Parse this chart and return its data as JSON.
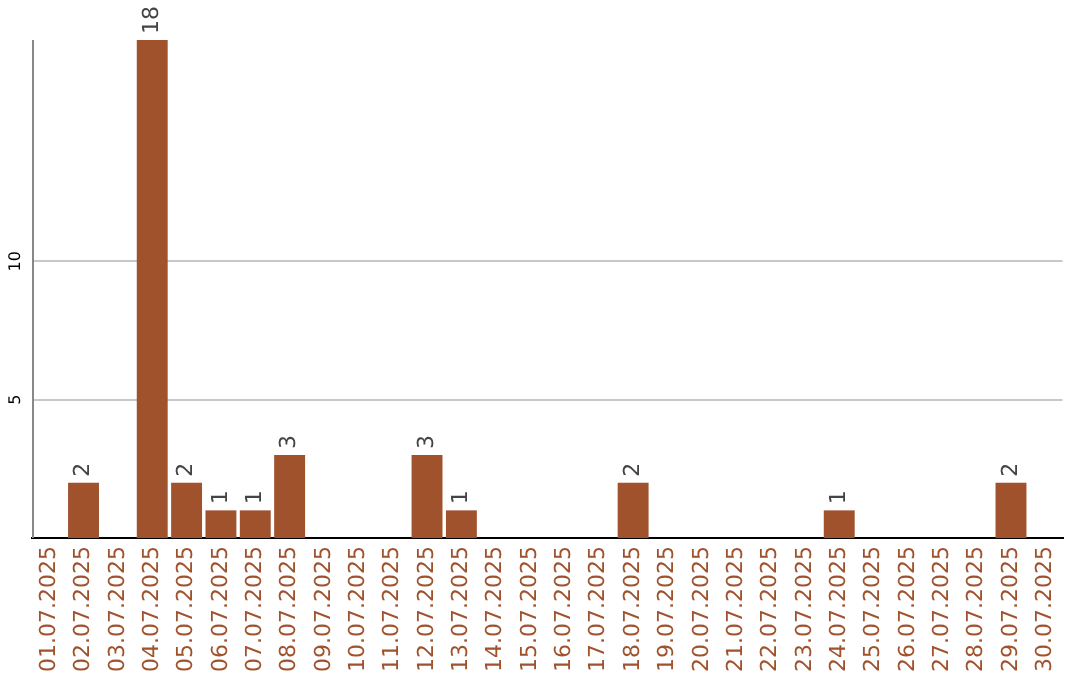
{
  "chart_data": {
    "type": "bar",
    "categories": [
      "01.07.2025",
      "02.07.2025",
      "03.07.2025",
      "04.07.2025",
      "05.07.2025",
      "06.07.2025",
      "07.07.2025",
      "08.07.2025",
      "09.07.2025",
      "10.07.2025",
      "11.07.2025",
      "12.07.2025",
      "13.07.2025",
      "14.07.2025",
      "15.07.2025",
      "16.07.2025",
      "17.07.2025",
      "18.07.2025",
      "19.07.2025",
      "20.07.2025",
      "21.07.2025",
      "22.07.2025",
      "23.07.2025",
      "24.07.2025",
      "25.07.2025",
      "26.07.2025",
      "27.07.2025",
      "28.07.2025",
      "29.07.2025",
      "30.07.2025"
    ],
    "values": [
      0,
      2,
      0,
      18,
      2,
      1,
      1,
      3,
      0,
      0,
      0,
      3,
      1,
      0,
      0,
      0,
      0,
      2,
      0,
      0,
      0,
      0,
      0,
      1,
      0,
      0,
      0,
      0,
      2,
      0
    ],
    "value_labels": [
      null,
      "2",
      null,
      "18",
      "2",
      "1",
      "1",
      "3",
      null,
      null,
      null,
      "3",
      "1",
      null,
      null,
      null,
      null,
      "2",
      null,
      null,
      null,
      null,
      null,
      "1",
      null,
      null,
      null,
      null,
      "2",
      null
    ],
    "color": "#a0522d",
    "ylim": [
      0,
      18
    ],
    "yticks": [
      5,
      10
    ],
    "grid": "y",
    "legend": false
  }
}
